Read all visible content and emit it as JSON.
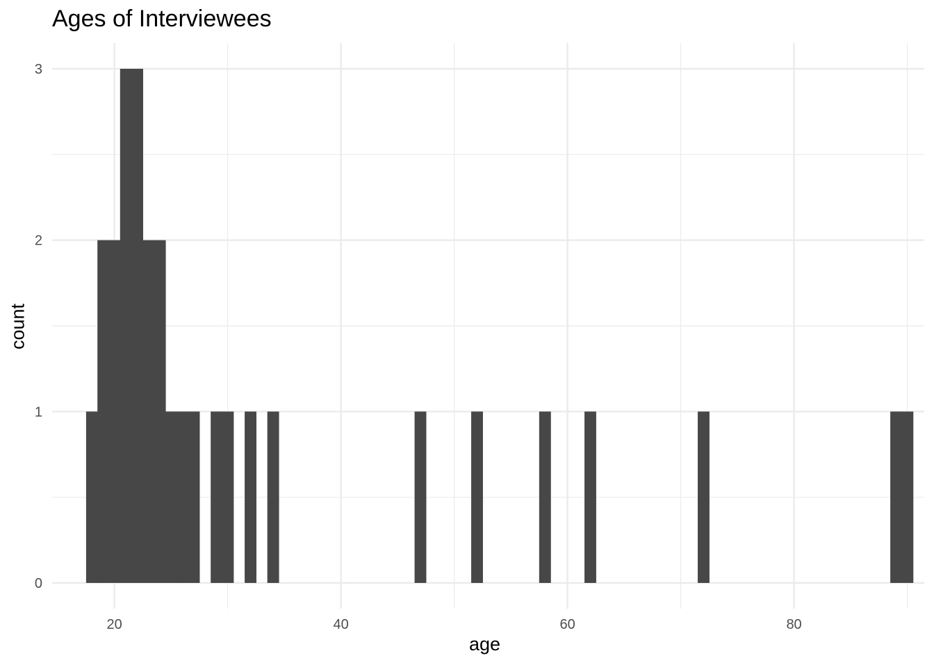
{
  "chart_data": {
    "type": "bar",
    "title": "Ages of Interviewees",
    "xlabel": "age",
    "ylabel": "count",
    "bin_width": 1,
    "xlim": [
      14.5,
      91.5
    ],
    "ylim": [
      -0.15,
      3.15
    ],
    "x_ticks": [
      20,
      40,
      60,
      80
    ],
    "y_ticks": [
      0,
      1,
      2,
      3
    ],
    "grid": true,
    "bar_color": "#474747",
    "grid_color": "#ebebeb",
    "bins": [
      {
        "x": 18,
        "count": 1
      },
      {
        "x": 19,
        "count": 2
      },
      {
        "x": 20,
        "count": 2
      },
      {
        "x": 21,
        "count": 3
      },
      {
        "x": 22,
        "count": 3
      },
      {
        "x": 23,
        "count": 2
      },
      {
        "x": 24,
        "count": 2
      },
      {
        "x": 25,
        "count": 1
      },
      {
        "x": 26,
        "count": 1
      },
      {
        "x": 27,
        "count": 1
      },
      {
        "x": 29,
        "count": 1
      },
      {
        "x": 30,
        "count": 1
      },
      {
        "x": 32,
        "count": 1
      },
      {
        "x": 34,
        "count": 1
      },
      {
        "x": 47,
        "count": 1
      },
      {
        "x": 52,
        "count": 1
      },
      {
        "x": 58,
        "count": 1
      },
      {
        "x": 62,
        "count": 1
      },
      {
        "x": 72,
        "count": 1
      },
      {
        "x": 89,
        "count": 1
      },
      {
        "x": 90,
        "count": 1
      }
    ]
  }
}
